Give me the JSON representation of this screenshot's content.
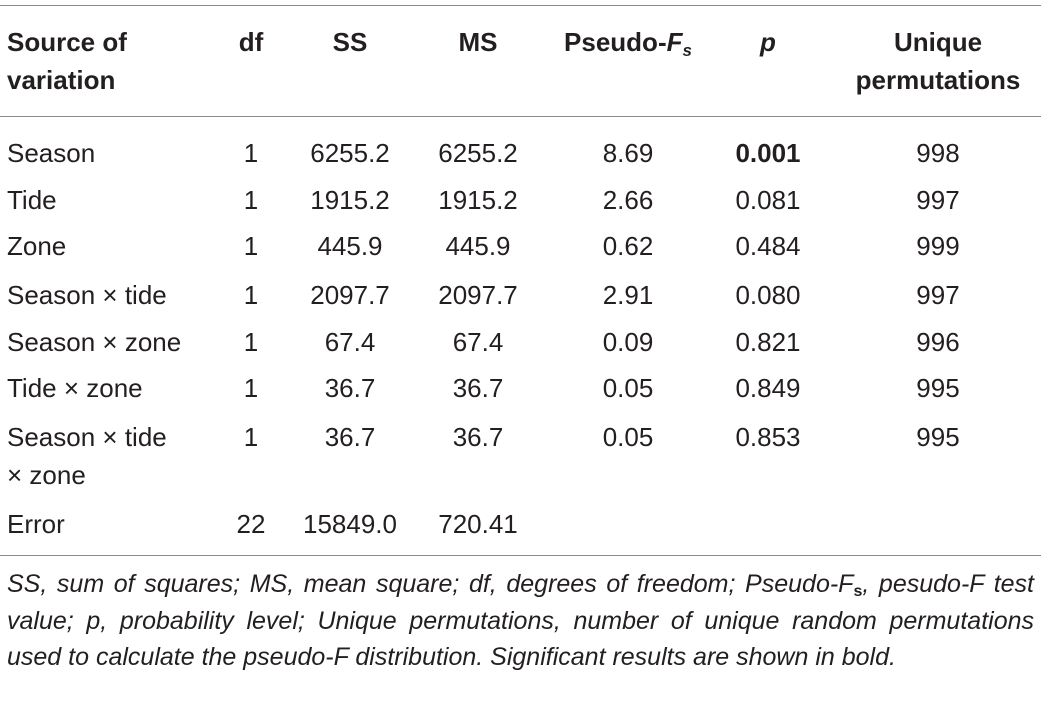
{
  "table": {
    "headers": {
      "source_line1": "Source of",
      "source_line2": "variation",
      "df": "df",
      "ss": "SS",
      "ms": "MS",
      "pseudo_f": "Pseudo-",
      "pseudo_f_italic": "F",
      "pseudo_f_sub": "s",
      "p": "p",
      "unique_line1": "Unique",
      "unique_line2": "permutations"
    },
    "rows": [
      {
        "source": "Season",
        "source_line2": "",
        "df": "1",
        "ss": "6255.2",
        "ms": "6255.2",
        "pseudo_f": "8.69",
        "p": "0.001",
        "p_bold": true,
        "unique": "998"
      },
      {
        "source": "Tide",
        "source_line2": "",
        "df": "1",
        "ss": "1915.2",
        "ms": "1915.2",
        "pseudo_f": "2.66",
        "p": "0.081",
        "p_bold": false,
        "unique": "997"
      },
      {
        "source": "Zone",
        "source_line2": "",
        "df": "1",
        "ss": "445.9",
        "ms": "445.9",
        "pseudo_f": "0.62",
        "p": "0.484",
        "p_bold": false,
        "unique": "999"
      },
      {
        "source": "Season × tide",
        "source_line2": "",
        "df": "1",
        "ss": "2097.7",
        "ms": "2097.7",
        "pseudo_f": "2.91",
        "p": "0.080",
        "p_bold": false,
        "unique": "997"
      },
      {
        "source": "Season × zone",
        "source_line2": "",
        "df": "1",
        "ss": "67.4",
        "ms": "67.4",
        "pseudo_f": "0.09",
        "p": "0.821",
        "p_bold": false,
        "unique": "996"
      },
      {
        "source": "Tide × zone",
        "source_line2": "",
        "df": "1",
        "ss": "36.7",
        "ms": "36.7",
        "pseudo_f": "0.05",
        "p": "0.849",
        "p_bold": false,
        "unique": "995"
      },
      {
        "source": "Season × tide",
        "source_line2": "× zone",
        "df": "1",
        "ss": "36.7",
        "ms": "36.7",
        "pseudo_f": "0.05",
        "p": "0.853",
        "p_bold": false,
        "unique": "995"
      },
      {
        "source": "Error",
        "source_line2": "",
        "df": "22",
        "ss": "15849.0",
        "ms": "720.41",
        "pseudo_f": "",
        "p": "",
        "p_bold": false,
        "unique": ""
      }
    ]
  },
  "footnote": {
    "part1": "SS, sum of squares; MS, mean square; df, degrees of freedom; Pseudo-F",
    "sub": "s",
    "part2": ", pesudo-F test value; p, probability level; Unique permutations, number of unique random permutations used to calculate the pseudo-F distribution. Significant results are shown in bold."
  }
}
